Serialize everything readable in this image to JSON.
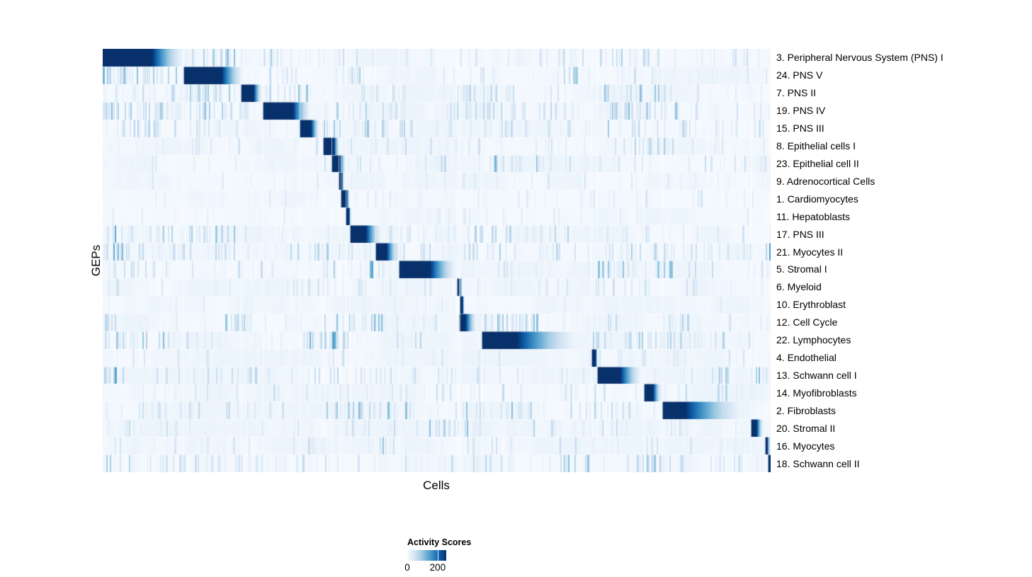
{
  "axes": {
    "x_label": "Cells",
    "y_label": "GEPs"
  },
  "legend": {
    "title": "Activity Scores",
    "ticks": [
      {
        "label": "0",
        "fraction": 0.0
      },
      {
        "label": "200",
        "fraction": 0.78
      }
    ]
  },
  "colors": {
    "colormap": [
      "#f7fbff",
      "#deebf7",
      "#c6dbef",
      "#9ecae1",
      "#6baed6",
      "#4292c6",
      "#2171b5",
      "#08519c",
      "#08306b"
    ],
    "page_background": "#ffffff",
    "heatmap_dark": "#08306b"
  },
  "chart_data": {
    "type": "heatmap",
    "title": "",
    "xlabel": "Cells",
    "ylabel": "GEPs",
    "value_label": "Activity Scores",
    "legend_tick_values": [
      0,
      200
    ],
    "n_rows": 24,
    "noise_seed": 1337,
    "rows": [
      {
        "label": "3. Peripheral Nervous System (PNS) I",
        "block": {
          "start": 0.0,
          "dark_end": 0.074,
          "fade_end": 0.128
        },
        "noise_bands": [
          [
            0.13,
            0.21,
            0.5,
            0.45
          ],
          [
            0.235,
            0.3,
            0.35,
            0.4
          ],
          [
            0.3,
            0.46,
            0.25,
            0.3
          ],
          [
            0.46,
            0.6,
            0.12,
            0.25
          ],
          [
            0.6,
            0.75,
            0.2,
            0.3
          ],
          [
            0.75,
            0.83,
            0.3,
            0.35
          ],
          [
            0.83,
            1.0,
            0.15,
            0.25
          ]
        ]
      },
      {
        "label": "24. PNS V",
        "block": {
          "start": 0.121,
          "dark_end": 0.178,
          "fade_end": 0.215
        },
        "noise_bands": [
          [
            0.0,
            0.12,
            0.55,
            0.5
          ],
          [
            0.23,
            0.3,
            0.3,
            0.35
          ],
          [
            0.37,
            0.4,
            0.4,
            0.4
          ],
          [
            0.4,
            0.55,
            0.12,
            0.2
          ],
          [
            0.55,
            0.57,
            0.5,
            0.45
          ],
          [
            0.68,
            0.73,
            0.35,
            0.4
          ],
          [
            0.77,
            0.84,
            0.3,
            0.35
          ],
          [
            0.84,
            1.0,
            0.12,
            0.2
          ]
        ]
      },
      {
        "label": "7. PNS II",
        "block": {
          "start": 0.207,
          "dark_end": 0.226,
          "fade_end": 0.24
        },
        "noise_bands": [
          [
            0.0,
            0.13,
            0.3,
            0.3
          ],
          [
            0.13,
            0.2,
            0.45,
            0.45
          ],
          [
            0.24,
            0.31,
            0.45,
            0.5
          ],
          [
            0.31,
            0.5,
            0.15,
            0.25
          ],
          [
            0.5,
            0.62,
            0.2,
            0.3
          ],
          [
            0.62,
            0.75,
            0.12,
            0.2
          ],
          [
            0.75,
            0.85,
            0.4,
            0.45
          ],
          [
            0.85,
            1.0,
            0.15,
            0.2
          ]
        ]
      },
      {
        "label": "19. PNS IV",
        "block": {
          "start": 0.24,
          "dark_end": 0.285,
          "fade_end": 0.314
        },
        "noise_bands": [
          [
            0.0,
            0.12,
            0.6,
            0.5
          ],
          [
            0.13,
            0.22,
            0.4,
            0.4
          ],
          [
            0.33,
            0.5,
            0.3,
            0.35
          ],
          [
            0.5,
            0.62,
            0.35,
            0.4
          ],
          [
            0.62,
            0.75,
            0.25,
            0.3
          ],
          [
            0.75,
            0.86,
            0.45,
            0.45
          ],
          [
            0.86,
            1.0,
            0.2,
            0.25
          ]
        ]
      },
      {
        "label": "15. PNS III",
        "block": {
          "start": 0.295,
          "dark_end": 0.312,
          "fade_end": 0.326
        },
        "noise_bands": [
          [
            0.0,
            0.2,
            0.3,
            0.3
          ],
          [
            0.33,
            0.43,
            0.4,
            0.4
          ],
          [
            0.43,
            0.62,
            0.25,
            0.3
          ],
          [
            0.62,
            0.72,
            0.2,
            0.25
          ],
          [
            0.75,
            0.82,
            0.35,
            0.4
          ],
          [
            0.82,
            1.0,
            0.25,
            0.3
          ]
        ]
      },
      {
        "label": "8. Epithelial cells I",
        "block": {
          "start": 0.33,
          "dark_end": 0.346,
          "fade_end": 0.356
        },
        "noise_bands": [
          [
            0.0,
            0.3,
            0.12,
            0.2
          ],
          [
            0.3,
            0.45,
            0.15,
            0.25
          ],
          [
            0.45,
            0.58,
            0.25,
            0.3
          ],
          [
            0.58,
            0.78,
            0.1,
            0.2
          ],
          [
            0.78,
            0.86,
            0.3,
            0.35
          ],
          [
            0.86,
            1.0,
            0.1,
            0.15
          ]
        ]
      },
      {
        "label": "23. Epithelial cell II",
        "block": {
          "start": 0.343,
          "dark_end": 0.355,
          "fade_end": 0.365
        },
        "noise_bands": [
          [
            0.0,
            0.3,
            0.1,
            0.15
          ],
          [
            0.33,
            0.42,
            0.2,
            0.3
          ],
          [
            0.48,
            0.52,
            0.3,
            0.3
          ],
          [
            0.57,
            0.67,
            0.45,
            0.5
          ],
          [
            0.67,
            0.85,
            0.15,
            0.25
          ],
          [
            0.85,
            1.0,
            0.2,
            0.25
          ]
        ]
      },
      {
        "label": "9. Adrenocortical Cells",
        "block": {
          "start": 0.353,
          "dark_end": 0.358,
          "fade_end": 0.362
        },
        "noise_bands": [
          [
            0.0,
            0.35,
            0.1,
            0.15
          ],
          [
            0.4,
            0.6,
            0.12,
            0.2
          ],
          [
            0.6,
            0.8,
            0.12,
            0.18
          ],
          [
            0.8,
            1.0,
            0.1,
            0.15
          ]
        ]
      },
      {
        "label": "1. Cardiomyocytes",
        "block": {
          "start": 0.356,
          "dark_end": 0.365,
          "fade_end": 0.371
        },
        "noise_bands": [
          [
            0.0,
            0.35,
            0.08,
            0.15
          ],
          [
            0.4,
            0.55,
            0.12,
            0.2
          ],
          [
            0.55,
            0.75,
            0.1,
            0.2
          ],
          [
            0.75,
            0.9,
            0.15,
            0.25
          ],
          [
            0.9,
            1.0,
            0.1,
            0.15
          ]
        ]
      },
      {
        "label": "11. Hepatoblasts",
        "block": {
          "start": 0.364,
          "dark_end": 0.369,
          "fade_end": 0.373
        },
        "noise_bands": [
          [
            0.0,
            0.45,
            0.07,
            0.13
          ],
          [
            0.45,
            0.55,
            0.15,
            0.2
          ],
          [
            0.55,
            1.0,
            0.07,
            0.13
          ]
        ]
      },
      {
        "label": "17. PNS III",
        "block": {
          "start": 0.37,
          "dark_end": 0.394,
          "fade_end": 0.42
        },
        "noise_bands": [
          [
            0.0,
            0.02,
            0.6,
            0.6
          ],
          [
            0.02,
            0.2,
            0.35,
            0.4
          ],
          [
            0.2,
            0.35,
            0.15,
            0.25
          ],
          [
            0.42,
            0.55,
            0.2,
            0.3
          ],
          [
            0.55,
            0.7,
            0.3,
            0.35
          ],
          [
            0.75,
            0.82,
            0.3,
            0.35
          ],
          [
            0.82,
            1.0,
            0.15,
            0.25
          ]
        ]
      },
      {
        "label": "21. Myocytes II",
        "block": {
          "start": 0.408,
          "dark_end": 0.425,
          "fade_end": 0.445
        },
        "noise_bands": [
          [
            0.0,
            0.04,
            0.5,
            0.55
          ],
          [
            0.04,
            0.2,
            0.3,
            0.35
          ],
          [
            0.28,
            0.36,
            0.35,
            0.4
          ],
          [
            0.36,
            0.5,
            0.15,
            0.25
          ],
          [
            0.52,
            0.62,
            0.3,
            0.35
          ],
          [
            0.67,
            0.72,
            0.25,
            0.3
          ],
          [
            0.75,
            0.86,
            0.35,
            0.4
          ],
          [
            0.86,
            0.99,
            0.15,
            0.25
          ],
          [
            0.99,
            1.0,
            0.95,
            0.85
          ]
        ]
      },
      {
        "label": "5. Stromal I",
        "block": {
          "start": 0.443,
          "dark_end": 0.49,
          "fade_end": 0.535
        },
        "noise_bands": [
          [
            0.0,
            0.1,
            0.3,
            0.3
          ],
          [
            0.1,
            0.3,
            0.15,
            0.25
          ],
          [
            0.33,
            0.35,
            0.6,
            0.65
          ],
          [
            0.4,
            0.42,
            0.5,
            0.55
          ],
          [
            0.55,
            0.62,
            0.2,
            0.3
          ],
          [
            0.74,
            0.86,
            0.4,
            0.45
          ],
          [
            0.86,
            1.0,
            0.2,
            0.3
          ]
        ]
      },
      {
        "label": "6. Myeloid",
        "block": {
          "start": 0.53,
          "dark_end": 0.535,
          "fade_end": 0.539
        },
        "noise_bands": [
          [
            0.0,
            0.3,
            0.12,
            0.2
          ],
          [
            0.3,
            0.5,
            0.18,
            0.25
          ],
          [
            0.55,
            0.75,
            0.12,
            0.2
          ],
          [
            0.75,
            0.9,
            0.18,
            0.3
          ],
          [
            0.9,
            1.0,
            0.12,
            0.2
          ]
        ]
      },
      {
        "label": "10. Erythroblast",
        "block": {
          "start": 0.534,
          "dark_end": 0.539,
          "fade_end": 0.542
        },
        "noise_bands": [
          [
            0.0,
            0.42,
            0.06,
            0.12
          ],
          [
            0.42,
            0.5,
            0.12,
            0.18
          ],
          [
            0.5,
            1.0,
            0.06,
            0.12
          ]
        ]
      },
      {
        "label": "12. Cell Cycle",
        "block": {
          "start": 0.533,
          "dark_end": 0.543,
          "fade_end": 0.562
        },
        "noise_bands": [
          [
            0.0,
            0.03,
            0.4,
            0.4
          ],
          [
            0.18,
            0.23,
            0.35,
            0.4
          ],
          [
            0.33,
            0.42,
            0.4,
            0.45
          ],
          [
            0.44,
            0.5,
            0.35,
            0.4
          ],
          [
            0.565,
            0.65,
            0.5,
            0.5
          ],
          [
            0.74,
            0.79,
            0.35,
            0.4
          ],
          [
            0.83,
            0.88,
            0.35,
            0.4
          ],
          [
            0.9,
            1.0,
            0.15,
            0.25
          ]
        ]
      },
      {
        "label": "22. Lymphocytes",
        "block": {
          "start": 0.567,
          "dark_end": 0.62,
          "fade_end": 0.722
        },
        "noise_bands": [
          [
            0.0,
            0.1,
            0.4,
            0.45
          ],
          [
            0.1,
            0.2,
            0.2,
            0.3
          ],
          [
            0.3,
            0.37,
            0.55,
            0.6
          ],
          [
            0.44,
            0.48,
            0.3,
            0.35
          ],
          [
            0.726,
            0.76,
            0.35,
            0.4
          ],
          [
            0.78,
            0.86,
            0.4,
            0.45
          ],
          [
            0.86,
            0.93,
            0.3,
            0.35
          ],
          [
            0.93,
            1.0,
            0.15,
            0.25
          ]
        ]
      },
      {
        "label": "4. Endothelial",
        "block": {
          "start": 0.732,
          "dark_end": 0.738,
          "fade_end": 0.742
        },
        "noise_bands": [
          [
            0.0,
            0.25,
            0.12,
            0.2
          ],
          [
            0.3,
            0.45,
            0.15,
            0.22
          ],
          [
            0.5,
            0.6,
            0.12,
            0.2
          ],
          [
            0.74,
            0.9,
            0.2,
            0.3
          ],
          [
            0.9,
            1.0,
            0.12,
            0.2
          ]
        ]
      },
      {
        "label": "13. Schwann cell I",
        "block": {
          "start": 0.74,
          "dark_end": 0.775,
          "fade_end": 0.81
        },
        "noise_bands": [
          [
            0.0,
            0.02,
            0.7,
            0.6
          ],
          [
            0.02,
            0.2,
            0.25,
            0.3
          ],
          [
            0.2,
            0.35,
            0.3,
            0.35
          ],
          [
            0.35,
            0.55,
            0.25,
            0.3
          ],
          [
            0.55,
            0.72,
            0.25,
            0.3
          ],
          [
            0.86,
            0.94,
            0.35,
            0.4
          ],
          [
            0.97,
            1.0,
            0.5,
            0.5
          ]
        ]
      },
      {
        "label": "14. Myofibroblasts",
        "block": {
          "start": 0.81,
          "dark_end": 0.824,
          "fade_end": 0.838
        },
        "noise_bands": [
          [
            0.0,
            0.3,
            0.15,
            0.22
          ],
          [
            0.3,
            0.55,
            0.2,
            0.28
          ],
          [
            0.55,
            0.6,
            0.3,
            0.3
          ],
          [
            0.6,
            0.8,
            0.12,
            0.2
          ],
          [
            0.85,
            1.0,
            0.2,
            0.3
          ]
        ]
      },
      {
        "label": "2. Fibroblasts",
        "block": {
          "start": 0.838,
          "dark_end": 0.872,
          "fade_end": 0.97
        },
        "noise_bands": [
          [
            0.0,
            0.1,
            0.3,
            0.35
          ],
          [
            0.1,
            0.3,
            0.2,
            0.28
          ],
          [
            0.33,
            0.47,
            0.4,
            0.45
          ],
          [
            0.52,
            0.57,
            0.5,
            0.55
          ],
          [
            0.58,
            0.64,
            0.45,
            0.5
          ],
          [
            0.7,
            0.8,
            0.3,
            0.35
          ]
        ]
      },
      {
        "label": "20. Stromal II",
        "block": {
          "start": 0.97,
          "dark_end": 0.979,
          "fade_end": 0.99
        },
        "noise_bands": [
          [
            0.0,
            0.1,
            0.25,
            0.3
          ],
          [
            0.1,
            0.3,
            0.15,
            0.22
          ],
          [
            0.35,
            0.45,
            0.2,
            0.3
          ],
          [
            0.47,
            0.57,
            0.4,
            0.45
          ],
          [
            0.63,
            0.68,
            0.3,
            0.35
          ],
          [
            0.74,
            0.78,
            0.25,
            0.3
          ],
          [
            0.83,
            0.88,
            0.3,
            0.35
          ]
        ]
      },
      {
        "label": "16. Myocytes",
        "block": {
          "start": 0.992,
          "dark_end": 0.996,
          "fade_end": 1.0
        },
        "noise_bands": [
          [
            0.0,
            0.25,
            0.12,
            0.2
          ],
          [
            0.28,
            0.33,
            0.2,
            0.3
          ],
          [
            0.4,
            0.44,
            0.45,
            0.5
          ],
          [
            0.5,
            0.65,
            0.15,
            0.22
          ],
          [
            0.67,
            0.75,
            0.2,
            0.28
          ],
          [
            0.8,
            0.9,
            0.15,
            0.22
          ]
        ]
      },
      {
        "label": "18. Schwann cell II",
        "block": {
          "start": 0.996,
          "dark_end": 1.0,
          "fade_end": 1.0
        },
        "noise_bands": [
          [
            0.0,
            0.25,
            0.3,
            0.35
          ],
          [
            0.25,
            0.4,
            0.2,
            0.28
          ],
          [
            0.45,
            0.6,
            0.25,
            0.3
          ],
          [
            0.68,
            0.74,
            0.45,
            0.45
          ],
          [
            0.78,
            0.88,
            0.4,
            0.4
          ],
          [
            0.88,
            0.96,
            0.2,
            0.25
          ]
        ]
      }
    ]
  }
}
